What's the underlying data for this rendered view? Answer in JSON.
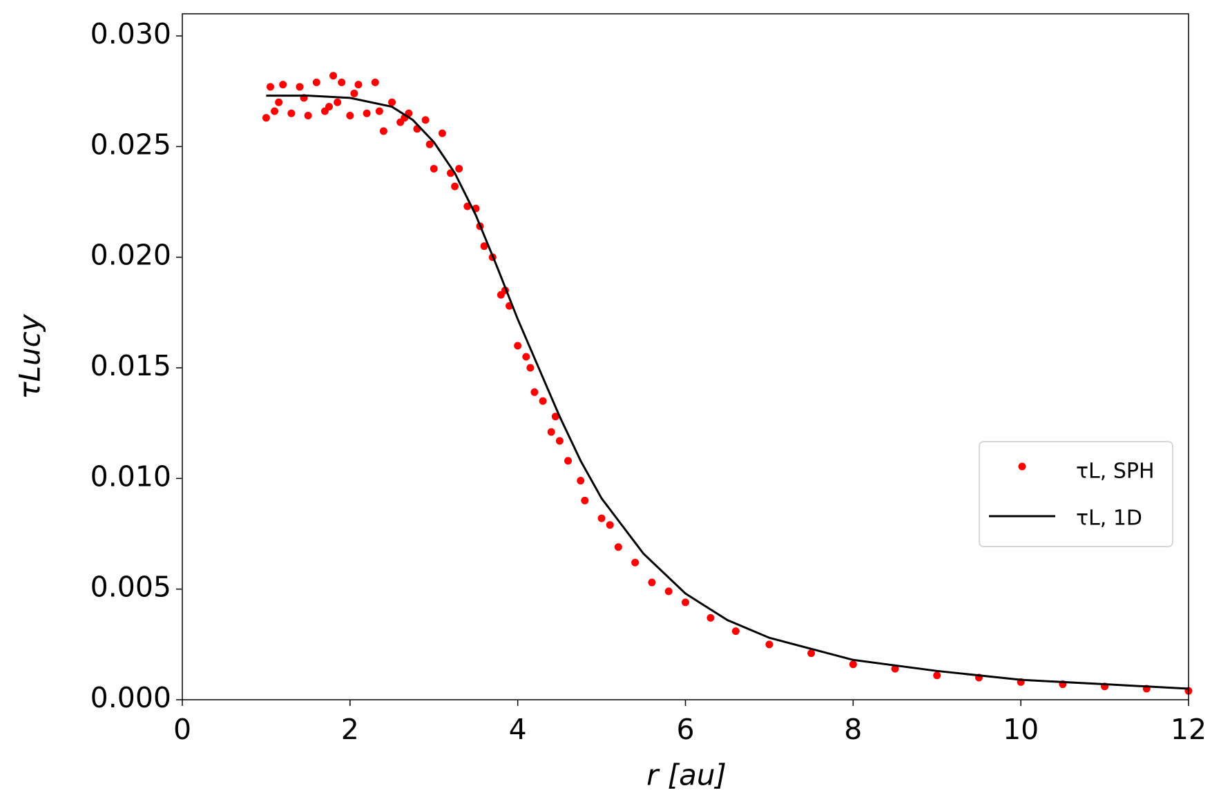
{
  "chart_data": {
    "type": "scatter",
    "xlabel": "r [au]",
    "ylabel": "τLucy",
    "xlim": [
      0,
      12
    ],
    "ylim": [
      0,
      0.031
    ],
    "xticks": [
      0,
      2,
      4,
      6,
      8,
      10,
      12
    ],
    "yticks": [
      {
        "value": 0,
        "label": "0.000"
      },
      {
        "value": 0.005,
        "label": "0.005"
      },
      {
        "value": 0.01,
        "label": "0.010"
      },
      {
        "value": 0.015,
        "label": "0.015"
      },
      {
        "value": 0.02,
        "label": "0.020"
      },
      {
        "value": 0.025,
        "label": "0.025"
      },
      {
        "value": 0.03,
        "label": "0.030"
      }
    ],
    "legend": "center right",
    "series": [
      {
        "name": "τL, SPH",
        "color": "#ff0000",
        "kind": "points",
        "x": [
          1.0,
          1.05,
          1.1,
          1.2,
          1.3,
          1.4,
          1.5,
          1.6,
          1.7,
          1.8,
          1.85,
          1.9,
          2.0,
          2.1,
          2.2,
          2.3,
          2.4,
          2.5,
          2.6,
          2.7,
          2.8,
          2.9,
          3.0,
          3.1,
          3.2,
          3.3,
          3.4,
          3.5,
          3.6,
          3.7,
          3.8,
          3.9,
          4.0,
          4.1,
          4.2,
          4.3,
          4.4,
          4.5,
          4.6,
          4.8,
          5.0,
          5.2,
          5.4,
          5.6,
          5.8,
          6.0,
          6.3,
          6.6,
          7.0,
          7.5,
          8.0,
          8.5,
          9.0,
          9.5,
          10.0,
          10.5,
          11.0,
          11.5,
          12.0,
          1.15,
          1.45,
          1.75,
          2.05,
          2.35,
          2.65,
          2.95,
          3.25,
          3.55,
          3.85,
          4.15,
          4.45,
          4.75,
          5.1
        ],
        "y": [
          0.0263,
          0.0277,
          0.0266,
          0.0278,
          0.0265,
          0.0277,
          0.0264,
          0.0279,
          0.0266,
          0.0282,
          0.027,
          0.0279,
          0.0264,
          0.0278,
          0.0265,
          0.0279,
          0.0257,
          0.027,
          0.0261,
          0.0265,
          0.0258,
          0.0262,
          0.024,
          0.0256,
          0.0238,
          0.024,
          0.0223,
          0.0222,
          0.0205,
          0.02,
          0.0183,
          0.0178,
          0.016,
          0.0155,
          0.0139,
          0.0135,
          0.0121,
          0.0117,
          0.0108,
          0.009,
          0.0082,
          0.0069,
          0.0062,
          0.0053,
          0.0049,
          0.0044,
          0.0037,
          0.0031,
          0.0025,
          0.0021,
          0.0016,
          0.0014,
          0.0011,
          0.001,
          0.0008,
          0.0007,
          0.0006,
          0.0005,
          0.0004,
          0.027,
          0.0272,
          0.0268,
          0.0274,
          0.0266,
          0.0263,
          0.0251,
          0.0232,
          0.0214,
          0.0185,
          0.015,
          0.0128,
          0.0099,
          0.0079
        ]
      },
      {
        "name": "τL, 1D",
        "color": "#000000",
        "kind": "line",
        "x": [
          1.0,
          1.5,
          2.0,
          2.5,
          2.75,
          3.0,
          3.25,
          3.5,
          3.75,
          4.0,
          4.25,
          4.5,
          4.75,
          5.0,
          5.5,
          6.0,
          6.5,
          7.0,
          8.0,
          9.0,
          10.0,
          11.0,
          12.0
        ],
        "y": [
          0.0273,
          0.0273,
          0.0272,
          0.0268,
          0.0262,
          0.0252,
          0.0238,
          0.0219,
          0.0196,
          0.0172,
          0.015,
          0.0128,
          0.0108,
          0.0091,
          0.0066,
          0.0048,
          0.0036,
          0.0028,
          0.0018,
          0.0013,
          0.0009,
          0.0007,
          0.0005
        ]
      }
    ]
  }
}
